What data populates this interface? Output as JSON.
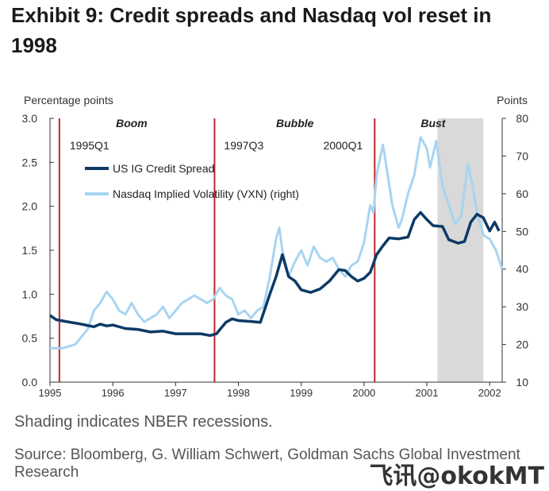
{
  "title": "Exhibit 9: Credit spreads and Nasdaq vol reset in 1998",
  "footer": {
    "shading_note": "Shading indicates NBER recessions.",
    "source": "Source: Bloomberg, G. William Schwert, Goldman Sachs Global Investment Research"
  },
  "watermark": "飞讯@okokMT",
  "colors": {
    "credit": "#0d3a66",
    "vxn": "#a8d4f2",
    "event_line": "#c0282d",
    "recession": "#d9d9d9"
  },
  "chart_data": {
    "type": "line",
    "left_axis_label": "Percentage points",
    "right_axis_label": "Points",
    "x_range": [
      1995.0,
      2002.2
    ],
    "y_left_range": [
      0.0,
      3.0
    ],
    "y_right_range": [
      10,
      80
    ],
    "x_ticks": [
      "1995",
      "1996",
      "1997",
      "1998",
      "1999",
      "2000",
      "2001",
      "2002"
    ],
    "y_left_ticks": [
      "0.0",
      "0.5",
      "1.0",
      "1.5",
      "2.0",
      "2.5",
      "3.0"
    ],
    "y_right_ticks": [
      "10",
      "20",
      "30",
      "40",
      "50",
      "60",
      "70",
      "80"
    ],
    "phases": [
      {
        "label": "Boom",
        "x": 1996.3
      },
      {
        "label": "Bubble",
        "x": 1998.9
      },
      {
        "label": "Bust",
        "x": 2001.1
      }
    ],
    "event_lines": [
      {
        "x": 1995.15,
        "label": "1995Q1"
      },
      {
        "x": 1997.62,
        "label": "1997Q3"
      },
      {
        "x": 2000.17,
        "label": "2000Q1"
      }
    ],
    "recession": {
      "start": 2001.17,
      "end": 2001.9
    },
    "series": [
      {
        "name": "US IG Credit Spread",
        "axis": "left",
        "points": [
          [
            1995.0,
            0.76
          ],
          [
            1995.1,
            0.71
          ],
          [
            1995.25,
            0.69
          ],
          [
            1995.5,
            0.66
          ],
          [
            1995.7,
            0.63
          ],
          [
            1995.8,
            0.66
          ],
          [
            1995.9,
            0.64
          ],
          [
            1996.0,
            0.65
          ],
          [
            1996.2,
            0.61
          ],
          [
            1996.4,
            0.6
          ],
          [
            1996.6,
            0.57
          ],
          [
            1996.8,
            0.58
          ],
          [
            1997.0,
            0.55
          ],
          [
            1997.2,
            0.55
          ],
          [
            1997.4,
            0.55
          ],
          [
            1997.55,
            0.53
          ],
          [
            1997.65,
            0.55
          ],
          [
            1997.8,
            0.68
          ],
          [
            1997.9,
            0.72
          ],
          [
            1998.0,
            0.7
          ],
          [
            1998.2,
            0.69
          ],
          [
            1998.35,
            0.68
          ],
          [
            1998.5,
            1.0
          ],
          [
            1998.6,
            1.2
          ],
          [
            1998.7,
            1.45
          ],
          [
            1998.8,
            1.2
          ],
          [
            1998.9,
            1.15
          ],
          [
            1999.0,
            1.05
          ],
          [
            1999.15,
            1.02
          ],
          [
            1999.3,
            1.06
          ],
          [
            1999.45,
            1.15
          ],
          [
            1999.6,
            1.28
          ],
          [
            1999.7,
            1.27
          ],
          [
            1999.8,
            1.2
          ],
          [
            1999.9,
            1.15
          ],
          [
            2000.0,
            1.18
          ],
          [
            2000.1,
            1.25
          ],
          [
            2000.2,
            1.45
          ],
          [
            2000.3,
            1.55
          ],
          [
            2000.4,
            1.64
          ],
          [
            2000.55,
            1.63
          ],
          [
            2000.7,
            1.65
          ],
          [
            2000.8,
            1.85
          ],
          [
            2000.9,
            1.93
          ],
          [
            2001.0,
            1.85
          ],
          [
            2001.1,
            1.78
          ],
          [
            2001.25,
            1.77
          ],
          [
            2001.35,
            1.62
          ],
          [
            2001.5,
            1.58
          ],
          [
            2001.6,
            1.6
          ],
          [
            2001.7,
            1.82
          ],
          [
            2001.8,
            1.91
          ],
          [
            2001.9,
            1.87
          ],
          [
            2002.0,
            1.72
          ],
          [
            2002.08,
            1.82
          ],
          [
            2002.15,
            1.72
          ]
        ]
      },
      {
        "name": "Nasdaq Implied Volatility (VXN) (right)",
        "axis": "right",
        "points": [
          [
            1995.0,
            19
          ],
          [
            1995.2,
            19
          ],
          [
            1995.4,
            20
          ],
          [
            1995.5,
            22
          ],
          [
            1995.6,
            24
          ],
          [
            1995.7,
            29
          ],
          [
            1995.8,
            31
          ],
          [
            1995.9,
            34
          ],
          [
            1996.0,
            32
          ],
          [
            1996.1,
            29
          ],
          [
            1996.2,
            28
          ],
          [
            1996.3,
            31
          ],
          [
            1996.4,
            28
          ],
          [
            1996.5,
            26
          ],
          [
            1996.6,
            27
          ],
          [
            1996.7,
            28
          ],
          [
            1996.8,
            30
          ],
          [
            1996.9,
            27
          ],
          [
            1997.0,
            29
          ],
          [
            1997.1,
            31
          ],
          [
            1997.2,
            32
          ],
          [
            1997.3,
            33
          ],
          [
            1997.4,
            32
          ],
          [
            1997.5,
            31
          ],
          [
            1997.6,
            32
          ],
          [
            1997.7,
            35
          ],
          [
            1997.8,
            33
          ],
          [
            1997.9,
            32
          ],
          [
            1998.0,
            28
          ],
          [
            1998.1,
            29
          ],
          [
            1998.2,
            27
          ],
          [
            1998.3,
            29
          ],
          [
            1998.4,
            30
          ],
          [
            1998.5,
            38
          ],
          [
            1998.6,
            48
          ],
          [
            1998.65,
            51
          ],
          [
            1998.7,
            45
          ],
          [
            1998.8,
            38
          ],
          [
            1998.9,
            42
          ],
          [
            1999.0,
            45
          ],
          [
            1999.1,
            41
          ],
          [
            1999.2,
            46
          ],
          [
            1999.3,
            43
          ],
          [
            1999.4,
            42
          ],
          [
            1999.5,
            43
          ],
          [
            1999.6,
            40
          ],
          [
            1999.7,
            38
          ],
          [
            1999.8,
            41
          ],
          [
            1999.9,
            42
          ],
          [
            2000.0,
            47
          ],
          [
            2000.1,
            57
          ],
          [
            2000.15,
            55
          ],
          [
            2000.2,
            65
          ],
          [
            2000.3,
            73
          ],
          [
            2000.35,
            68
          ],
          [
            2000.45,
            57
          ],
          [
            2000.55,
            51
          ],
          [
            2000.6,
            53
          ],
          [
            2000.7,
            60
          ],
          [
            2000.8,
            65
          ],
          [
            2000.9,
            75
          ],
          [
            2001.0,
            72
          ],
          [
            2001.05,
            67
          ],
          [
            2001.15,
            74
          ],
          [
            2001.25,
            62
          ],
          [
            2001.35,
            57
          ],
          [
            2001.45,
            52
          ],
          [
            2001.55,
            54
          ],
          [
            2001.65,
            68
          ],
          [
            2001.72,
            63
          ],
          [
            2001.8,
            55
          ],
          [
            2001.9,
            49
          ],
          [
            2002.0,
            48
          ],
          [
            2002.1,
            45
          ],
          [
            2002.2,
            40
          ]
        ]
      }
    ]
  }
}
